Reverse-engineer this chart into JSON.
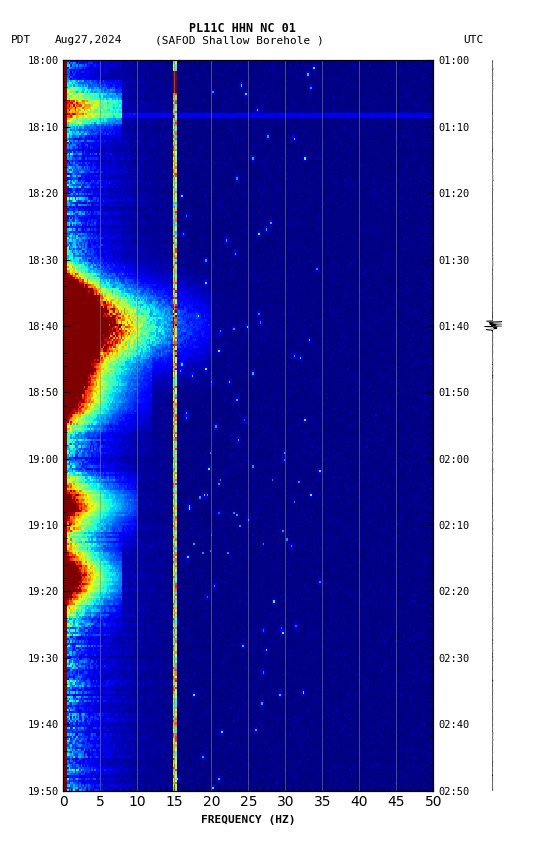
{
  "title_line1": "PL11C HHN NC 01",
  "xlabel": "FREQUENCY (HZ)",
  "freq_min": 0,
  "freq_max": 50,
  "yticks_pdt": [
    "18:00",
    "18:10",
    "18:20",
    "18:30",
    "18:40",
    "18:50",
    "19:00",
    "19:10",
    "19:20",
    "19:30",
    "19:40",
    "19:50"
  ],
  "yticks_utc": [
    "01:00",
    "01:10",
    "01:20",
    "01:30",
    "01:40",
    "01:50",
    "02:00",
    "02:10",
    "02:20",
    "02:30",
    "02:40",
    "02:50"
  ],
  "freq_gridlines": [
    5,
    10,
    15,
    20,
    25,
    30,
    35,
    40,
    45
  ],
  "xticks": [
    0,
    5,
    10,
    15,
    20,
    25,
    30,
    35,
    40,
    45,
    50
  ],
  "background_color": "#ffffff",
  "colormap": "jet",
  "fig_width": 5.52,
  "fig_height": 8.64,
  "dpi": 100
}
